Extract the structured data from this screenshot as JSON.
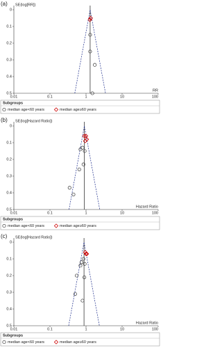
{
  "chart_data": [
    {
      "type": "scatter",
      "label": "(a)",
      "y_label": "SE(log[RR])",
      "x_label": "RR",
      "xscale": "log",
      "yinvert": true,
      "xlim": [
        0.01,
        100
      ],
      "xticks": [
        0.01,
        0.1,
        1,
        10,
        100
      ],
      "ylim": [
        0,
        0.5
      ],
      "yticks": [
        0,
        0.1,
        0.2,
        0.3,
        0.4,
        0.5
      ],
      "pooled": 1.3,
      "legend_title": "Subgroups",
      "series": [
        {
          "name": "median age<60 years",
          "marker": "circle",
          "color": "#333333",
          "x": [
            1.3,
            1.3,
            1.75,
            1.5
          ],
          "values": [
            0.15,
            0.25,
            0.33,
            0.5
          ]
        },
        {
          "name": "median age≥60 years",
          "marker": "diamond",
          "color": "#cc0000",
          "x": [
            1.35,
            1.28
          ],
          "values": [
            0.05,
            0.06
          ]
        }
      ]
    },
    {
      "type": "scatter",
      "label": "(b)",
      "y_label": "SE(log[Hazard Ratio])",
      "x_label": "Hazard Ratio",
      "xscale": "log",
      "yinvert": true,
      "xlim": [
        0.01,
        100
      ],
      "xticks": [
        0.01,
        0.1,
        1,
        10,
        100
      ],
      "ylim": [
        0,
        0.5
      ],
      "yticks": [
        0,
        0.1,
        0.2,
        0.3,
        0.4,
        0.5
      ],
      "pooled": 0.9,
      "legend_title": "Subgroups",
      "series": [
        {
          "name": "median age<60 years",
          "marker": "circle",
          "color": "#333333",
          "x": [
            0.8,
            0.7,
            0.92,
            0.85,
            0.65,
            0.35,
            0.45
          ],
          "values": [
            0.13,
            0.14,
            0.15,
            0.23,
            0.26,
            0.37,
            0.41
          ]
        },
        {
          "name": "median age≥60 years",
          "marker": "diamond",
          "color": "#cc0000",
          "x": [
            0.9,
            1.0,
            1.05,
            0.95
          ],
          "values": [
            0.06,
            0.06,
            0.08,
            0.09
          ]
        }
      ]
    },
    {
      "type": "scatter",
      "label": "(c)",
      "y_label": "SE(log[Hazard Ratio])",
      "x_label": "Hazard Ratio",
      "xscale": "log",
      "yinvert": true,
      "xlim": [
        0.01,
        100
      ],
      "xticks": [
        0.01,
        0.1,
        1,
        10,
        100
      ],
      "ylim": [
        0,
        0.5
      ],
      "yticks": [
        0,
        0.1,
        0.2,
        0.3,
        0.4,
        0.5
      ],
      "pooled": 0.88,
      "legend_title": "Subgroups",
      "series": [
        {
          "name": "median age<60 years",
          "marker": "circle",
          "color": "#333333",
          "x": [
            0.85,
            0.75,
            0.92,
            0.7,
            0.55,
            0.9,
            0.5,
            0.8
          ],
          "values": [
            0.1,
            0.12,
            0.13,
            0.14,
            0.2,
            0.21,
            0.31,
            0.35
          ]
        },
        {
          "name": "median age≥60 years",
          "marker": "diamond",
          "color": "#cc0000",
          "x": [
            0.95,
            1.0,
            1.05
          ],
          "values": [
            0.06,
            0.07,
            0.07
          ]
        }
      ]
    }
  ]
}
